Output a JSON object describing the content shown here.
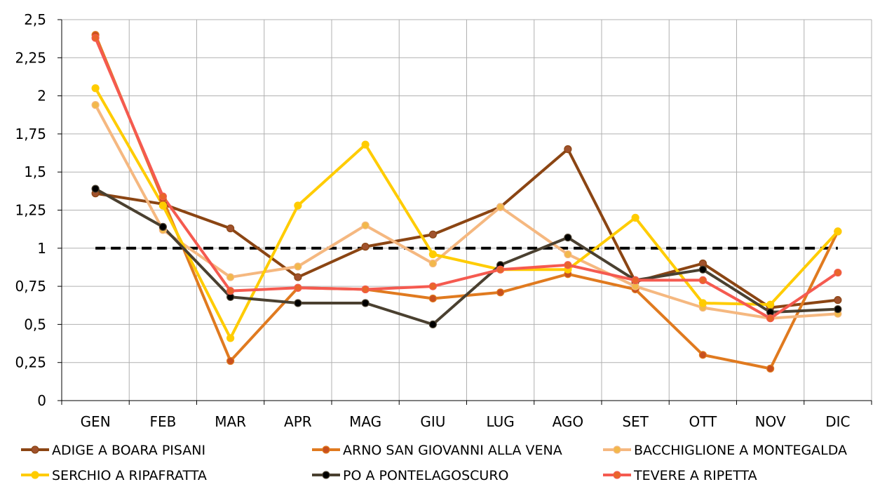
{
  "chart_data": {
    "type": "line",
    "title": "",
    "xlabel": "",
    "ylabel": "",
    "categories": [
      "GEN",
      "FEB",
      "MAR",
      "APR",
      "MAG",
      "GIU",
      "LUG",
      "AGO",
      "SET",
      "OTT",
      "NOV",
      "DIC"
    ],
    "ylim": [
      0,
      2.5
    ],
    "yticks": [
      "0",
      "0,25",
      "0,5",
      "0,75",
      "1",
      "1,25",
      "1,5",
      "1,75",
      "2",
      "2,25",
      "2,5"
    ],
    "grid": true,
    "legend_position": "bottom",
    "reference_line": {
      "value": 1,
      "color": "#000000",
      "style": "dashed"
    },
    "series": [
      {
        "name": "ADIGE A BOARA PISANI",
        "color": "#8B4513",
        "marker_color": "#A0522D",
        "values": [
          1.36,
          1.29,
          1.13,
          0.81,
          1.01,
          1.09,
          1.27,
          1.65,
          0.78,
          0.9,
          0.61,
          0.66
        ]
      },
      {
        "name": "ARNO SAN GIOVANNI ALLA VENA",
        "color": "#E07A1F",
        "marker_color": "#C8501E",
        "values": [
          2.4,
          1.32,
          0.26,
          0.74,
          0.73,
          0.67,
          0.71,
          0.83,
          0.73,
          0.3,
          0.21,
          1.11
        ]
      },
      {
        "name": "BACCHIGLIONE A MONTEGALDA",
        "color": "#F5B880",
        "marker_color": "#F2B84B",
        "values": [
          1.94,
          1.12,
          0.81,
          0.88,
          1.15,
          0.9,
          1.27,
          0.96,
          0.75,
          0.61,
          0.54,
          0.57
        ]
      },
      {
        "name": "SERCHIO A RIPAFRATTA",
        "color": "#FFCC00",
        "marker_color": "#FFCC00",
        "values": [
          2.05,
          1.28,
          0.41,
          1.28,
          1.68,
          0.96,
          0.86,
          0.86,
          1.2,
          0.64,
          0.63,
          1.11
        ]
      },
      {
        "name": "PO A PONTELAGOSCURO",
        "color": "#4A4030",
        "marker_color": "#000000",
        "values": [
          1.39,
          1.14,
          0.68,
          0.64,
          0.64,
          0.5,
          0.89,
          1.07,
          0.79,
          0.86,
          0.58,
          0.6
        ]
      },
      {
        "name": "TEVERE A RIPETTA",
        "color": "#F55A50",
        "marker_color": "#E8662A",
        "values": [
          2.38,
          1.34,
          0.72,
          0.74,
          0.73,
          0.75,
          0.86,
          0.89,
          0.79,
          0.79,
          0.54,
          0.84
        ]
      }
    ]
  }
}
